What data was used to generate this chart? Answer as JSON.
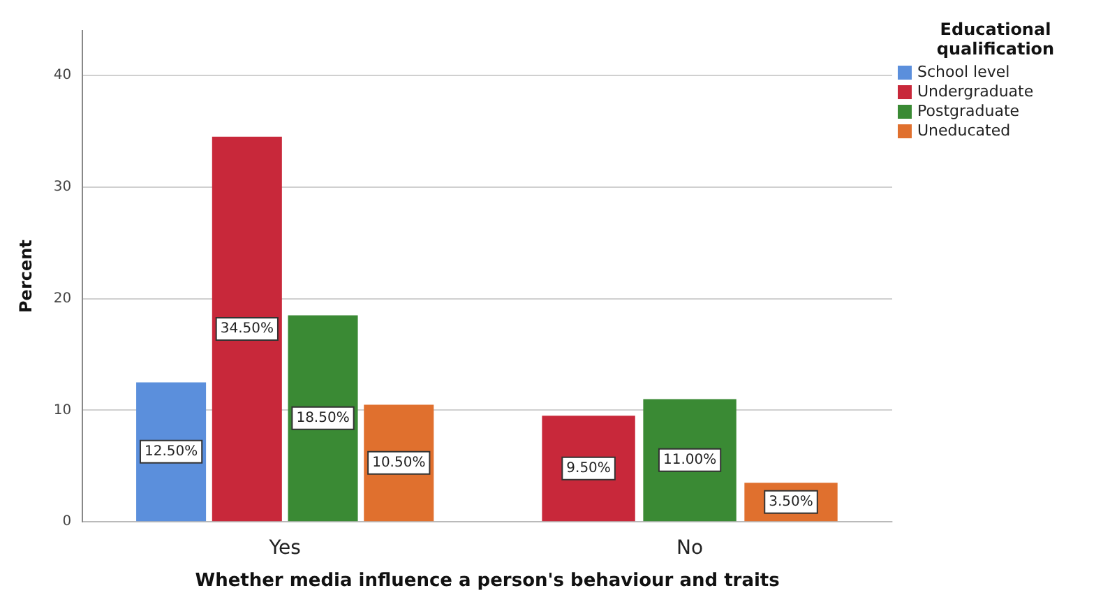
{
  "chart_data": {
    "type": "bar",
    "xlabel": "Whether media influence a person's behaviour and traits",
    "ylabel": "Percent",
    "legend_title": "Educational qualification",
    "categories": [
      "Yes",
      "No"
    ],
    "series": [
      {
        "name": "School level",
        "color": "#5b8fdc",
        "values": [
          12.5,
          null
        ],
        "value_labels": [
          "12.50%",
          null
        ]
      },
      {
        "name": "Undergraduate",
        "color": "#c8283a",
        "values": [
          34.5,
          9.5
        ],
        "value_labels": [
          "34.50%",
          "9.50%"
        ]
      },
      {
        "name": "Postgraduate",
        "color": "#3a8a34",
        "values": [
          18.5,
          11.0
        ],
        "value_labels": [
          "18.50%",
          "11.00%"
        ]
      },
      {
        "name": "Uneducated",
        "color": "#e0702e",
        "values": [
          10.5,
          3.5
        ],
        "value_labels": [
          "10.50%",
          "3.50%"
        ]
      }
    ],
    "ylim": [
      0,
      44
    ],
    "yticks": [
      0,
      10,
      20,
      30,
      40
    ],
    "grid": "y",
    "legend": "top right"
  }
}
